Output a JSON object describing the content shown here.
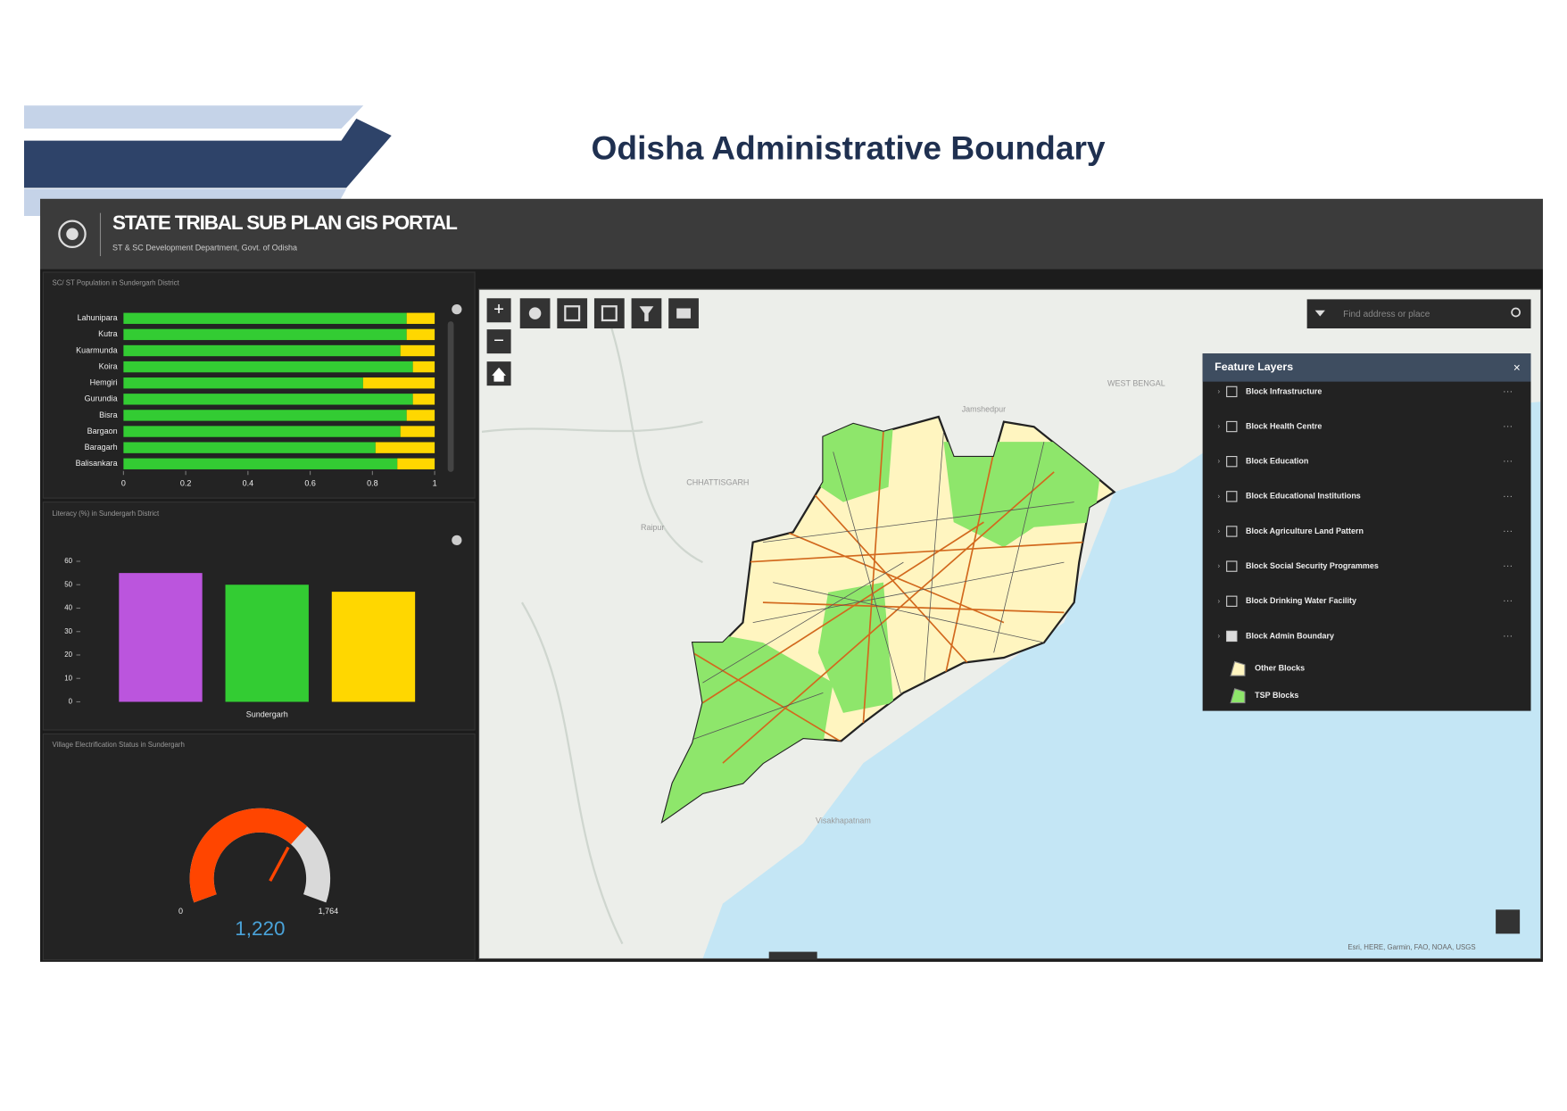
{
  "slide_title": "Odisha Administrative Boundary",
  "portal": {
    "title": "STATE TRIBAL SUB PLAN GIS PORTAL",
    "subtitle": "ST & SC Development Department, Govt. of Odisha"
  },
  "chart_data": [
    {
      "type": "hbar-stacked",
      "title": "SC/ ST Population in Sundergarh District",
      "categories": [
        "Lahunipara",
        "Kutra",
        "Kuarmunda",
        "Koira",
        "Hemgiri",
        "Gurundia",
        "Bisra",
        "Bargaon",
        "Baragarh",
        "Balisankara"
      ],
      "series": [
        {
          "color": "#33cc33",
          "values": [
            0.91,
            0.91,
            0.89,
            0.93,
            0.77,
            0.93,
            0.91,
            0.89,
            0.81,
            0.88
          ]
        },
        {
          "color": "#ffd700",
          "values": [
            0.09,
            0.09,
            0.11,
            0.07,
            0.23,
            0.07,
            0.09,
            0.11,
            0.19,
            0.12
          ]
        }
      ],
      "xlim": [
        0,
        1
      ],
      "xticks": [
        0,
        0.2,
        0.4,
        0.6,
        0.8,
        1
      ]
    },
    {
      "type": "bar",
      "title": "Literacy (%) in Sundergarh District",
      "categories": [
        "Sundergarh"
      ],
      "series": [
        {
          "color": "#bb55dd",
          "values": [
            55
          ]
        },
        {
          "color": "#33cc33",
          "values": [
            50
          ]
        },
        {
          "color": "#ffd700",
          "values": [
            47
          ]
        }
      ],
      "ylim": [
        0,
        60
      ],
      "yticks": [
        0,
        10,
        20,
        30,
        40,
        50,
        60
      ]
    },
    {
      "type": "gauge",
      "title": "Village Electrification Status in Sundergarh",
      "min": 0,
      "max": {
        "value": 1764,
        "label": "1,764"
      },
      "value": 1220,
      "value_label": "1,220",
      "color": "#ff4500",
      "track_color": "#d9d9d9"
    }
  ],
  "map": {
    "search_placeholder": "Find address or place",
    "layers_title": "Feature Layers",
    "layers": [
      {
        "name": "Block Infrastructure",
        "checked": false
      },
      {
        "name": "Block Health Centre",
        "checked": false
      },
      {
        "name": "Block Education",
        "checked": false
      },
      {
        "name": "Block Educational Institutions",
        "checked": false
      },
      {
        "name": "Block Agriculture Land Pattern",
        "checked": false
      },
      {
        "name": "Block Social Security Programmes",
        "checked": false
      },
      {
        "name": "Block Drinking Water Facility",
        "checked": false
      },
      {
        "name": "Block Admin Boundary",
        "checked": true
      }
    ],
    "legend": [
      {
        "label": "Other Blocks",
        "color": "#fff5c0"
      },
      {
        "label": "TSP Blocks",
        "color": "#8ee66b"
      }
    ],
    "place_labels": [
      "Jamshedpur",
      "WEST BENGAL",
      "CHHATTISGARH",
      "Raipur",
      "Visakhapatnam"
    ],
    "attribution": "Esri, HERE, Garmin, FAO, NOAA, USGS"
  }
}
